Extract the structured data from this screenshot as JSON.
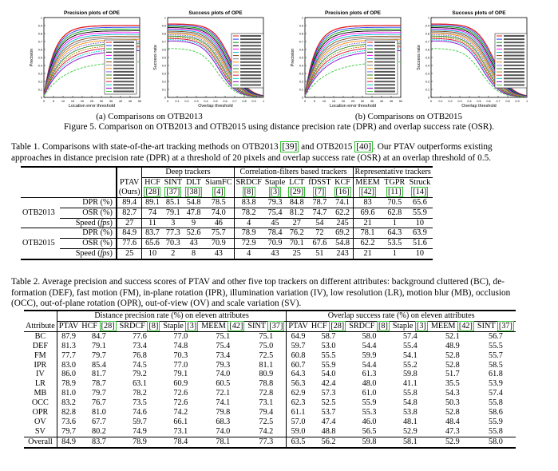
{
  "figure": {
    "plots": [
      {
        "title": "Precision plots of OPE",
        "xlabel": "Location error threshold",
        "ylabel": "Precision"
      },
      {
        "title": "Success plots of OPE",
        "xlabel": "Overlap threshold",
        "ylabel": "Success rate"
      },
      {
        "title": "Precision plots of OPE",
        "xlabel": "Location error threshold",
        "ylabel": "Precision"
      },
      {
        "title": "Success plots of OPE",
        "xlabel": "Overlap threshold",
        "ylabel": "Success rate"
      }
    ],
    "subcaption_a": "(a) Comparisons on OTB2013",
    "subcaption_b": "(b) Comparisons on OTB2015",
    "caption": "Figure 5. Comparison on OTB2013 and OTB2015 using distance precision rate (DPR) and overlap success rate (OSR)."
  },
  "table1": {
    "caption_pre": "Table 1. Comparisons with state-of-the-art tracking methods on OTB2013 ",
    "cite_a": "[39]",
    "caption_mid": " and OTB2015 ",
    "cite_b": "[40]",
    "caption_post": ". Our PTAV outperforms existing",
    "caption_line2": "approaches in distance precision rate (DPR) at a threshold of 20 pixels and overlap success rate (OSR) at an overlap threshold of 0.5.",
    "group_deep": "Deep trackers",
    "group_cf": "Correlation-filters based trackers",
    "group_rep": "Representative trackers",
    "ptav_label": "PTAV",
    "ptav_sub": "(Ours)",
    "trackers": [
      {
        "name": "HCF",
        "cite": "[28]"
      },
      {
        "name": "SINT",
        "cite": "[37]"
      },
      {
        "name": "DLT",
        "cite": "[38]"
      },
      {
        "name": "SiamFC",
        "cite": "[4]"
      },
      {
        "name": "SRDCF",
        "cite": "[8]"
      },
      {
        "name": "Staple",
        "cite": "[3]"
      },
      {
        "name": "LCT",
        "cite": "[29]"
      },
      {
        "name": "fDSST",
        "cite": "[7]"
      },
      {
        "name": "KCF",
        "cite": "[16]"
      },
      {
        "name": "MEEM",
        "cite": "[42]"
      },
      {
        "name": "TGPR",
        "cite": "[11]"
      },
      {
        "name": "Struck",
        "cite": "[14]"
      }
    ],
    "datasets": [
      {
        "name": "OTB2013",
        "rows": [
          {
            "metric": "DPR (%)",
            "values": [
              "89.4",
              "89.1",
              "85.1",
              "54.8",
              "78.5",
              "83.8",
              "79.3",
              "84.8",
              "78.7",
              "74.1",
              "83",
              "70.5",
              "65.6"
            ]
          },
          {
            "metric": "OSR (%)",
            "values": [
              "82.7",
              "74",
              "79.1",
              "47.8",
              "74.0",
              "78.2",
              "75.4",
              "81.2",
              "74.7",
              "62.2",
              "69.6",
              "62.8",
              "55.9"
            ]
          },
          {
            "metric": "Speed (",
            "unit": "fps",
            "values": [
              "27",
              "11",
              "3",
              "9",
              "46",
              "4",
              "45",
              "27",
              "54",
              "245",
              "21",
              "1",
              "10"
            ]
          }
        ]
      },
      {
        "name": "OTB2015",
        "rows": [
          {
            "metric": "DPR (%)",
            "values": [
              "84.9",
              "83.7",
              "77.3",
              "52.6",
              "75.7",
              "78.9",
              "78.4",
              "76.2",
              "72",
              "69.2",
              "78.1",
              "64.3",
              "63.9"
            ]
          },
          {
            "metric": "OSR (%)",
            "values": [
              "77.6",
              "65.6",
              "70.3",
              "43",
              "70.9",
              "72.9",
              "70.9",
              "70.1",
              "67.6",
              "54.8",
              "62.2",
              "53.5",
              "51.6"
            ]
          },
          {
            "metric": "Speed (",
            "unit": "fps",
            "values": [
              "25",
              "10",
              "2",
              "8",
              "43",
              "4",
              "43",
              "25",
              "51",
              "243",
              "21",
              "1",
              "10"
            ]
          }
        ]
      }
    ]
  },
  "table2": {
    "caption_lines": [
      "Table 2. Average precision and success scores of PTAV and other five top trackers on different attributes: background cluttered (BC), de-",
      "formation (DEF), fast motion (FM), in-plane rotation (IPR), illumination variation (IV), low resolution (LR), motion blur (MB), occlusion",
      "(OCC), out-of-plane rotation (OPR), out-of-view (OV) and scale variation (SV)."
    ],
    "group_dpr": "Distance precision rate (%) on eleven attributes",
    "group_osr": "Overlap success rate (%) on eleven attributes",
    "attr_header": "Attribute",
    "columns": [
      {
        "name": "PTAV",
        "cite": ""
      },
      {
        "name": "HCF ",
        "cite": "[28]"
      },
      {
        "name": "SRDCF ",
        "cite": "[8]"
      },
      {
        "name": "Staple ",
        "cite": "[3]"
      },
      {
        "name": "MEEM ",
        "cite": "[42]"
      },
      {
        "name": "SINT ",
        "cite": "[37]"
      }
    ],
    "rows": [
      {
        "attr": "BC",
        "dpr": [
          "87.9",
          "84.7",
          "77.6",
          "77.0",
          "75.1",
          "75.1"
        ],
        "osr": [
          "64.9",
          "58.7",
          "58.0",
          "57.4",
          "52.1",
          "56.7"
        ]
      },
      {
        "attr": "DEF",
        "dpr": [
          "81.3",
          "79.1",
          "73.4",
          "74.8",
          "75.4",
          "75.0"
        ],
        "osr": [
          "59.7",
          "53.0",
          "54.4",
          "55.4",
          "48.9",
          "55.5"
        ]
      },
      {
        "attr": "FM",
        "dpr": [
          "77.7",
          "79.7",
          "76.8",
          "70.3",
          "73.4",
          "72.5"
        ],
        "osr": [
          "60.8",
          "55.5",
          "59.9",
          "54.1",
          "52.8",
          "55.7"
        ]
      },
      {
        "attr": "IPR",
        "dpr": [
          "83.0",
          "85.4",
          "74.5",
          "77.0",
          "79.3",
          "81.1"
        ],
        "osr": [
          "60.7",
          "55.9",
          "54.4",
          "55.2",
          "52.8",
          "58.5"
        ]
      },
      {
        "attr": "IV",
        "dpr": [
          "86.0",
          "81.7",
          "79.2",
          "79.1",
          "74.0",
          "80.9"
        ],
        "osr": [
          "64.3",
          "54.0",
          "61.3",
          "59.8",
          "51.7",
          "61.8"
        ]
      },
      {
        "attr": "LR",
        "dpr": [
          "78.9",
          "78.7",
          "63.1",
          "60.9",
          "60.5",
          "78.8"
        ],
        "osr": [
          "56.3",
          "42.4",
          "48.0",
          "41.1",
          "35.5",
          "53.9"
        ]
      },
      {
        "attr": "MB",
        "dpr": [
          "81.0",
          "79.7",
          "78.2",
          "72.6",
          "72.1",
          "72.8"
        ],
        "osr": [
          "62.9",
          "57.3",
          "61.0",
          "55.8",
          "54.3",
          "57.4"
        ]
      },
      {
        "attr": "OCC",
        "dpr": [
          "83.2",
          "76.7",
          "73.5",
          "72.6",
          "74.1",
          "73.1"
        ],
        "osr": [
          "62.3",
          "52.5",
          "55.9",
          "54.8",
          "50.3",
          "55.8"
        ]
      },
      {
        "attr": "OPR",
        "dpr": [
          "82.8",
          "81.0",
          "74.6",
          "74.2",
          "79.8",
          "79.4"
        ],
        "osr": [
          "61.1",
          "53.7",
          "55.3",
          "53.8",
          "52.8",
          "58.6"
        ]
      },
      {
        "attr": "OV",
        "dpr": [
          "73.6",
          "67.7",
          "59.7",
          "66.1",
          "68.3",
          "72.5"
        ],
        "osr": [
          "57.0",
          "47.4",
          "46.0",
          "48.1",
          "48.4",
          "55.9"
        ]
      },
      {
        "attr": "SV",
        "dpr": [
          "79.7",
          "80.2",
          "74.9",
          "73.1",
          "74.0",
          "74.2"
        ],
        "osr": [
          "59.0",
          "48.8",
          "56.5",
          "52.9",
          "47.3",
          "55.8"
        ]
      },
      {
        "attr": "Overall",
        "dpr": [
          "84.9",
          "83.7",
          "78.9",
          "78.4",
          "78.1",
          "77.3"
        ],
        "osr": [
          "63.5",
          "56.2",
          "59.8",
          "58.1",
          "52.9",
          "58.0"
        ]
      }
    ]
  }
}
